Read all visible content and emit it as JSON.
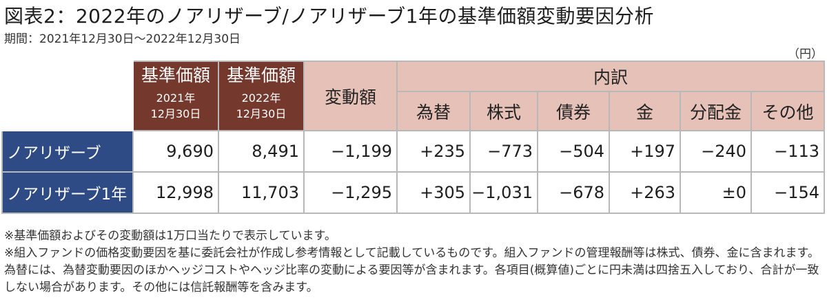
{
  "title": "図表2：2022年のノアリザーブ/ノアリザーブ1年の基準価額変動要因分析",
  "period": "期間：2021年12月30日～2022年12月30日",
  "unit": "（円）",
  "table": {
    "col_nav2021": "基準価額",
    "col_nav2021_date": [
      "2021年",
      "12月30日"
    ],
    "col_nav2022": "基準価額",
    "col_nav2022_date": [
      "2022年",
      "12月30日"
    ],
    "col_change": "変動額",
    "col_breakdown": "内訳",
    "breakdown_cols": [
      "為替",
      "株式",
      "債券",
      "金",
      "分配金",
      "その他"
    ],
    "rows": [
      {
        "name": "ノアリザーブ",
        "nav2021": "9,690",
        "nav2022": "8,491",
        "change": "−1,199",
        "breakdown": [
          "+235",
          "−773",
          "−504",
          "+197",
          "−240",
          "−113"
        ]
      },
      {
        "name": "ノアリザーブ1年",
        "nav2021": "12,998",
        "nav2022": "11,703",
        "change": "−1,295",
        "breakdown": [
          "+305",
          "−1,031",
          "−678",
          "+263",
          "±0",
          "−154"
        ]
      }
    ]
  },
  "notes": [
    "※基準価額およびその変動額は1万口当たりで表示しています。",
    "※組入ファンドの価格変動要因を基に委託会社が作成し参考情報として記載しているものです。組入ファンドの管理報酬等は株式、債券、金に含まれます。為替には、為替変動要因のほかヘッジコストやヘッジ比率の変動による要因等が含まれます。各項目(概算値)ごとに円未満は四捨五入しており、合計が一致しない場合があります。その他には信託報酬等を含みます。"
  ]
}
